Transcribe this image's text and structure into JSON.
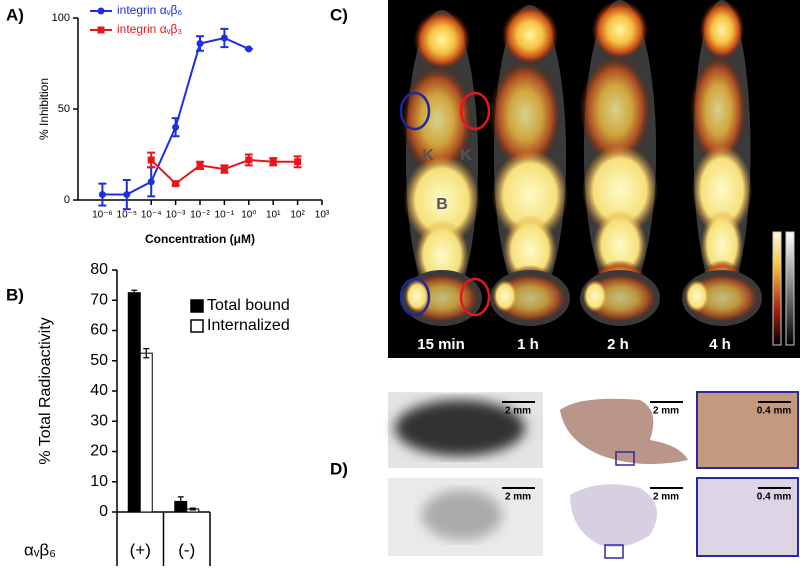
{
  "panels": [
    "A)",
    "B)",
    "C)",
    "D)"
  ],
  "chart_data": [
    {
      "type": "line",
      "xscale": "log",
      "xlim": [
        1e-07,
        1000
      ],
      "xticks": [
        {
          "value": 1e-06,
          "label": "10⁻⁶"
        },
        {
          "value": 1e-05,
          "label": "10⁻⁵"
        },
        {
          "value": 0.0001,
          "label": "10⁻⁴"
        },
        {
          "value": 0.001,
          "label": "10⁻³"
        },
        {
          "value": 0.01,
          "label": "10⁻²"
        },
        {
          "value": 0.1,
          "label": "10⁻¹"
        },
        {
          "value": 1,
          "label": "10⁰"
        },
        {
          "value": 10,
          "label": "10¹"
        },
        {
          "value": 100,
          "label": "10²"
        },
        {
          "value": 1000,
          "label": "10³"
        }
      ],
      "ylim": [
        0,
        100
      ],
      "yticks": [
        0,
        50,
        100
      ],
      "x_label": "Concentration (μM)",
      "y_label": "%  Inhibition",
      "legend": "upper left",
      "series": [
        {
          "name": "integrin αᵥβ₆",
          "color": "#1f2ee0",
          "marker": "circle",
          "x": [
            1e-06,
            1e-05,
            0.0001,
            0.001,
            0.01,
            0.1,
            1
          ],
          "values": [
            3,
            3,
            10,
            40,
            86,
            89,
            83
          ],
          "errors": [
            6,
            8,
            8,
            5,
            4,
            5,
            0
          ]
        },
        {
          "name": "integrin αᵥβ₃",
          "color": "#e8161b",
          "marker": "square",
          "x": [
            0.0001,
            0.001,
            0.01,
            0.1,
            1,
            10,
            100
          ],
          "values": [
            22,
            9,
            19,
            17,
            22,
            21,
            21
          ],
          "errors": [
            4,
            1,
            2,
            2,
            3,
            2,
            3
          ]
        }
      ]
    },
    {
      "type": "bar",
      "categories": [
        "(+)",
        "(-)"
      ],
      "x_label": "αᵥβ₆",
      "y_label": "% Total Radioactivity",
      "ylim": [
        0,
        80
      ],
      "yticks": [
        0,
        10,
        20,
        30,
        40,
        50,
        60,
        70,
        80
      ],
      "legend": "upper right",
      "series": [
        {
          "name": "Total bound",
          "color": "#000000",
          "values": [
            72.5,
            3.5
          ],
          "errors": [
            0.8,
            1.5
          ]
        },
        {
          "name": "Internalized",
          "color": "#ffffff",
          "values": [
            52.5,
            1
          ],
          "errors": [
            1.5,
            0.3
          ]
        }
      ]
    }
  ],
  "imaging": {
    "time_labels": [
      "15 min",
      "1 h",
      "2 h",
      "4 h"
    ],
    "organ_labels": [
      "K",
      "K",
      "B"
    ]
  },
  "histology": {
    "scale_labels": [
      "2 mm",
      "2 mm",
      "0.4 mm",
      "2 mm",
      "2 mm",
      "0.4 mm"
    ]
  }
}
